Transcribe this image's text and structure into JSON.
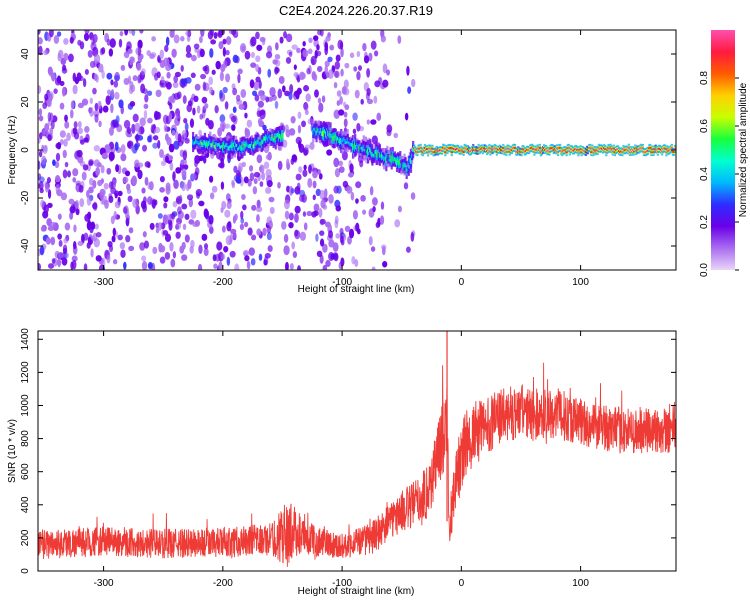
{
  "title": "C2E4.2024.226.20.37.R19",
  "chart_data": [
    {
      "type": "heatmap",
      "xlabel": "Height of straight line (km)",
      "ylabel": "Frequency (Hz)",
      "xlim": [
        -355,
        180
      ],
      "ylim": [
        -50,
        50
      ],
      "xticks": [
        -300,
        -200,
        -100,
        0,
        100
      ],
      "yticks": [
        -40,
        -20,
        0,
        20,
        40
      ],
      "ridge": [
        {
          "x": -220,
          "y": 3
        },
        {
          "x": -200,
          "y": 2
        },
        {
          "x": -185,
          "y": 1
        },
        {
          "x": -170,
          "y": 3
        },
        {
          "x": -160,
          "y": 5
        },
        {
          "x": -120,
          "y": 8
        },
        {
          "x": -100,
          "y": 4
        },
        {
          "x": -80,
          "y": 0
        },
        {
          "x": -65,
          "y": -3
        },
        {
          "x": -55,
          "y": -4
        },
        {
          "x": -45,
          "y": -8
        },
        {
          "x": -40,
          "y": 0
        },
        {
          "x": -20,
          "y": 0
        },
        {
          "x": 0,
          "y": 0
        },
        {
          "x": 50,
          "y": 0
        },
        {
          "x": 100,
          "y": 0
        },
        {
          "x": 150,
          "y": 0
        },
        {
          "x": 180,
          "y": 0
        }
      ],
      "colorbar": {
        "label": "Normalized spectral amplitude",
        "range": [
          0.0,
          1.0
        ],
        "ticks": [
          "0.0",
          "0.2",
          "0.4",
          "0.6",
          "0.8"
        ],
        "colors": [
          "#e9d5f7",
          "#a96df0",
          "#6a00e8",
          "#2f2cff",
          "#00b8ff",
          "#00ffd0",
          "#19ff3c",
          "#c8ff00",
          "#ffd000",
          "#ff5a00",
          "#ff1a40",
          "#ff4fb0"
        ]
      }
    },
    {
      "type": "line",
      "xlabel": "Height of straight line (km)",
      "ylabel": "SNR (10 * v/v)",
      "xlim": [
        -355,
        180
      ],
      "ylim": [
        0,
        1450
      ],
      "xticks": [
        -300,
        -200,
        -100,
        0,
        100
      ],
      "yticks": [
        0,
        200,
        400,
        600,
        800,
        1000,
        1200,
        1400
      ],
      "color": "#ef3b36",
      "series": [
        {
          "x": [
            -355,
            -300,
            -250,
            -200,
            -160,
            -145,
            -140,
            -130,
            -100,
            -75,
            -50,
            -35,
            -30,
            -25,
            -20,
            -15,
            -12,
            -10,
            -5,
            0,
            5,
            10,
            15,
            20,
            30,
            40,
            50,
            60,
            75,
            90,
            100,
            110,
            130,
            150,
            165,
            180
          ],
          "y": [
            160,
            180,
            165,
            170,
            190,
            230,
            240,
            195,
            150,
            200,
            360,
            420,
            470,
            540,
            700,
            820,
            980,
            240,
            540,
            690,
            780,
            820,
            850,
            880,
            920,
            950,
            960,
            940,
            960,
            930,
            900,
            880,
            850,
            840,
            850,
            880
          ],
          "spread": [
            180,
            180,
            180,
            180,
            200,
            420,
            300,
            200,
            150,
            200,
            250,
            320,
            340,
            380,
            420,
            460,
            480,
            200,
            360,
            420,
            420,
            400,
            380,
            360,
            340,
            330,
            330,
            320,
            320,
            300,
            300,
            280,
            280,
            280,
            300,
            320
          ]
        }
      ]
    }
  ]
}
